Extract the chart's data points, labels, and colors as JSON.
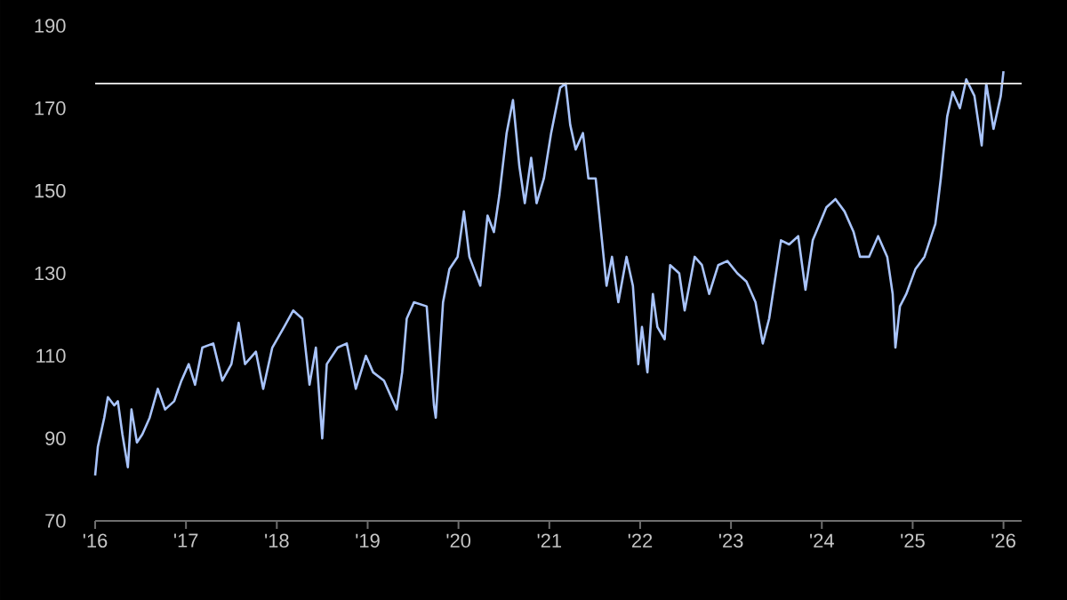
{
  "chart_data": {
    "type": "line",
    "x": [
      2016.0,
      2016.03,
      2016.1,
      2016.14,
      2016.21,
      2016.25,
      2016.3,
      2016.36,
      2016.4,
      2016.46,
      2016.52,
      2016.6,
      2016.69,
      2016.77,
      2016.87,
      2016.95,
      2017.03,
      2017.1,
      2017.18,
      2017.3,
      2017.4,
      2017.5,
      2017.58,
      2017.65,
      2017.77,
      2017.85,
      2017.95,
      2018.08,
      2018.18,
      2018.28,
      2018.36,
      2018.43,
      2018.5,
      2018.55,
      2018.67,
      2018.77,
      2018.87,
      2018.98,
      2019.06,
      2019.18,
      2019.32,
      2019.38,
      2019.43,
      2019.51,
      2019.65,
      2019.73,
      2019.75,
      2019.83,
      2019.9,
      2019.99,
      2020.06,
      2020.12,
      2020.24,
      2020.32,
      2020.39,
      2020.45,
      2020.53,
      2020.6,
      2020.67,
      2020.73,
      2020.8,
      2020.86,
      2020.94,
      2021.02,
      2021.12,
      2021.18,
      2021.23,
      2021.29,
      2021.37,
      2021.43,
      2021.51,
      2021.57,
      2021.63,
      2021.69,
      2021.76,
      2021.85,
      2021.92,
      2021.98,
      2022.02,
      2022.08,
      2022.14,
      2022.19,
      2022.27,
      2022.33,
      2022.43,
      2022.49,
      2022.6,
      2022.68,
      2022.76,
      2022.86,
      2022.96,
      2023.07,
      2023.17,
      2023.27,
      2023.35,
      2023.42,
      2023.55,
      2023.64,
      2023.74,
      2023.82,
      2023.9,
      2024.05,
      2024.15,
      2024.25,
      2024.35,
      2024.42,
      2024.52,
      2024.62,
      2024.72,
      2024.78,
      2024.81,
      2024.86,
      2024.93,
      2025.03,
      2025.13,
      2025.25,
      2025.31,
      2025.38,
      2025.44,
      2025.52,
      2025.59,
      2025.68,
      2025.76,
      2025.81,
      2025.89,
      2025.97,
      2026.0
    ],
    "series": [
      {
        "color": "#a9c4fb",
        "values": [
          81,
          88,
          95,
          100,
          98,
          99,
          91,
          83,
          97,
          89,
          91,
          95,
          102,
          97,
          99,
          104,
          108,
          103,
          112,
          113,
          104,
          108,
          118,
          108,
          111,
          102,
          112,
          117,
          121,
          119,
          103,
          112,
          90,
          108,
          112,
          113,
          102,
          110,
          106,
          104,
          97,
          106,
          119,
          123,
          122,
          98,
          95,
          123,
          131,
          134,
          145,
          134,
          127,
          144,
          140,
          149,
          164,
          172,
          156,
          147,
          158,
          147,
          153,
          164,
          175,
          176,
          166,
          160,
          164,
          153,
          153,
          140,
          127,
          134,
          123,
          134,
          127,
          108,
          117,
          106,
          125,
          117,
          114,
          132,
          130,
          121,
          134,
          132,
          125,
          132,
          133,
          130,
          128,
          123,
          113,
          119,
          138,
          137,
          139,
          126,
          138,
          146,
          148,
          145,
          140,
          134,
          134,
          139,
          134,
          125,
          112,
          122,
          125,
          131,
          134,
          142,
          153,
          168,
          174,
          170,
          177,
          173,
          161,
          176,
          165,
          173,
          179
        ]
      }
    ],
    "xlim": [
      2016,
      2026.2
    ],
    "ylim": [
      70,
      190
    ],
    "xticks": [
      {
        "value": 2016,
        "label": "'16"
      },
      {
        "value": 2017,
        "label": "'17"
      },
      {
        "value": 2018,
        "label": "'18"
      },
      {
        "value": 2019,
        "label": "'19"
      },
      {
        "value": 2020,
        "label": "'20"
      },
      {
        "value": 2021,
        "label": "'21"
      },
      {
        "value": 2022,
        "label": "'22"
      },
      {
        "value": 2023,
        "label": "'23"
      },
      {
        "value": 2024,
        "label": "'24"
      },
      {
        "value": 2025,
        "label": "'25"
      },
      {
        "value": 2026,
        "label": "'26"
      }
    ],
    "yticks": [
      70,
      90,
      110,
      130,
      150,
      170,
      190
    ],
    "ref_lines": [
      {
        "axis": "y",
        "value": 176,
        "color": "#d9d9d9"
      }
    ]
  }
}
